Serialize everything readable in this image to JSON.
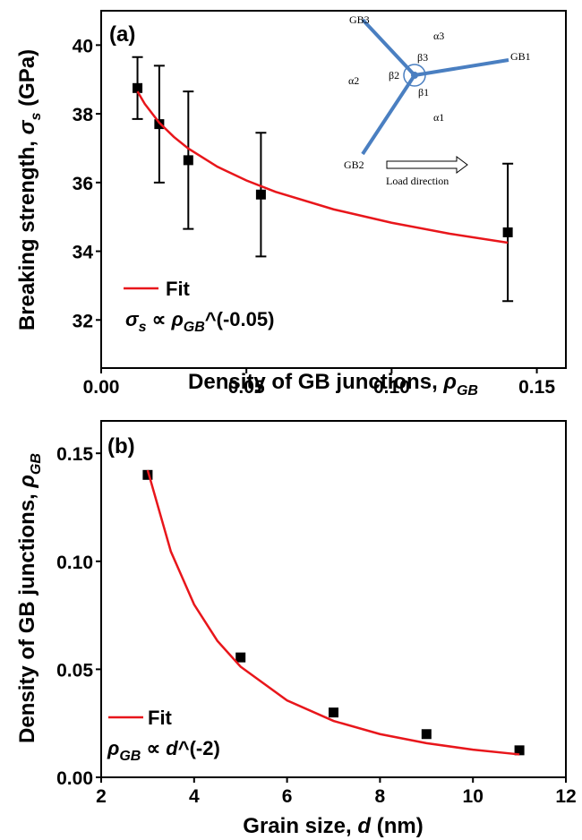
{
  "chart_data": [
    {
      "type": "scatter",
      "panel_label": "(a)",
      "xlabel": [
        "Density of GB junctions, ",
        "ρ",
        "GB"
      ],
      "ylabel": [
        "Breaking strength, ",
        "σ",
        "s",
        " (GPa)"
      ],
      "xlim": [
        0,
        0.16
      ],
      "xticks": [
        {
          "value": 0,
          "label": "0.00"
        },
        {
          "value": 0.05,
          "label": "0.05"
        },
        {
          "value": 0.1,
          "label": "0.10"
        },
        {
          "value": 0.15,
          "label": "0.15"
        }
      ],
      "ylim": [
        30.6,
        41
      ],
      "yticks": [
        32,
        34,
        36,
        38,
        40
      ],
      "series": [
        {
          "color": "#000000",
          "x": [
            0.0125,
            0.02,
            0.03,
            0.055,
            0.14
          ],
          "values": [
            38.75,
            37.7,
            36.65,
            35.65,
            34.55
          ],
          "errors": [
            0.9,
            1.7,
            2.0,
            1.8,
            2.0
          ]
        },
        {
          "name": "Fit",
          "type": "line",
          "color": "#e8161b",
          "x": [
            0.0125,
            0.015,
            0.02,
            0.025,
            0.03,
            0.04,
            0.05,
            0.06,
            0.08,
            0.1,
            0.12,
            0.14
          ],
          "values": [
            38.65,
            38.29,
            37.74,
            37.33,
            36.99,
            36.46,
            36.06,
            35.73,
            35.22,
            34.83,
            34.51,
            34.25
          ]
        }
      ],
      "formula": [
        "σ",
        "s",
        " ∝ ",
        "ρ",
        "GB",
        "^(-0.05)"
      ],
      "inset": {
        "labels": [
          "GB3",
          "GB1",
          "GB2",
          "α3",
          "α2",
          "α1",
          "β3",
          "β2",
          "β1",
          "Load direction"
        ]
      }
    },
    {
      "type": "scatter",
      "panel_label": "(b)",
      "xlabel": [
        "Grain size, ",
        "d",
        " (nm)"
      ],
      "ylabel": [
        "Density of GB junctions, ",
        "ρ",
        "GB"
      ],
      "xlim": [
        2,
        12
      ],
      "xticks": [
        2,
        4,
        6,
        8,
        10,
        12
      ],
      "ylim": [
        0,
        0.165
      ],
      "yticks": [
        {
          "value": 0,
          "label": "0.00"
        },
        {
          "value": 0.05,
          "label": "0.05"
        },
        {
          "value": 0.1,
          "label": "0.10"
        },
        {
          "value": 0.15,
          "label": "0.15"
        }
      ],
      "series": [
        {
          "color": "#000000",
          "x": [
            3,
            5,
            7,
            9,
            11
          ],
          "values": [
            0.14,
            0.0555,
            0.03,
            0.02,
            0.0125
          ]
        },
        {
          "name": "Fit",
          "type": "line",
          "color": "#e8161b",
          "x": [
            3,
            3.5,
            4,
            4.5,
            5,
            6,
            7,
            8,
            9,
            10,
            11
          ],
          "values": [
            0.1422,
            0.1045,
            0.08,
            0.0632,
            0.0512,
            0.0356,
            0.0261,
            0.02,
            0.0158,
            0.0128,
            0.0106
          ]
        }
      ],
      "formula": [
        "ρ",
        "GB",
        " ∝ ",
        "d",
        "^(-2)"
      ]
    }
  ]
}
